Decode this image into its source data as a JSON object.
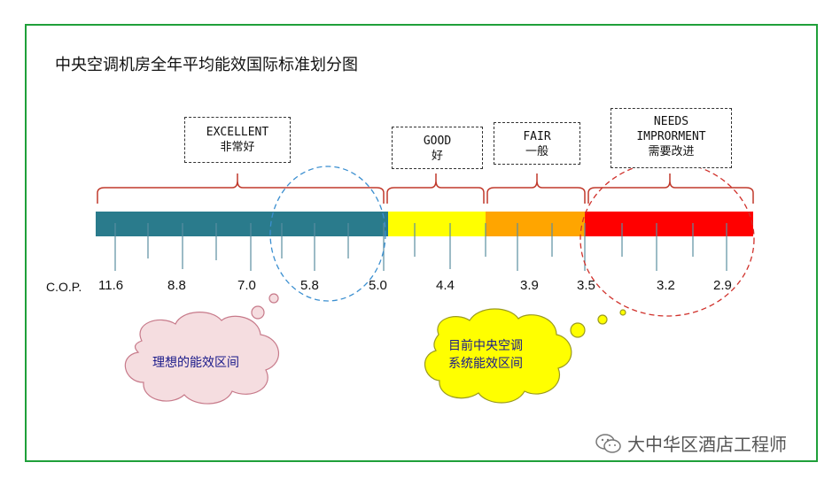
{
  "title": "中央空调机房全年平均能效国际标准划分图",
  "cop_label": "C.O.P.",
  "categories": [
    {
      "en": "EXCELLENT",
      "cn": "非常好"
    },
    {
      "en": "GOOD",
      "cn": "好"
    },
    {
      "en": "FAIR",
      "cn": "一般"
    },
    {
      "en": "NEEDS",
      "en2": "IMPRORMENT",
      "cn": "需要改进"
    }
  ],
  "bar_colors": {
    "excellent": "#2a7b8c",
    "good": "#ffff00",
    "fair": "#ffa500",
    "needs_improvement": "#ff0000",
    "bracket": "#c0392b",
    "frame": "#1fa03a"
  },
  "cop_values": [
    "11.6",
    "8.8",
    "7.0",
    "5.8",
    "5.0",
    "4.4",
    "3.9",
    "3.5",
    "3.2",
    "2.9"
  ],
  "clouds": {
    "ideal": "理想的能效区间",
    "current_line1": "目前中央空调",
    "current_line2": "系统能效区间"
  },
  "watermark": "大中华区酒店工程师",
  "icons": [
    "wechat-icon"
  ]
}
